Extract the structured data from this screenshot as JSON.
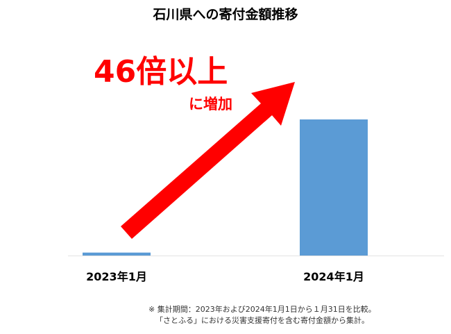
{
  "chart_data": {
    "type": "bar",
    "title": "石川県への寄付金額推移",
    "categories": [
      "2023年1月",
      "2024年1月"
    ],
    "values": [
      1,
      46
    ],
    "ylim": [
      0,
      46
    ],
    "grid": false,
    "bar_color": "#5b9bd5",
    "annotation": {
      "main": "46倍以上",
      "sub": "に増加",
      "color": "#ff0000",
      "arrow": "up-right"
    }
  },
  "footnote": {
    "line1": "※ 集計期間：2023年および2024年1月1日から１月31日を比較。",
    "line2": "「さとふる」における災害支援寄付を含む寄付金額から集計。"
  }
}
